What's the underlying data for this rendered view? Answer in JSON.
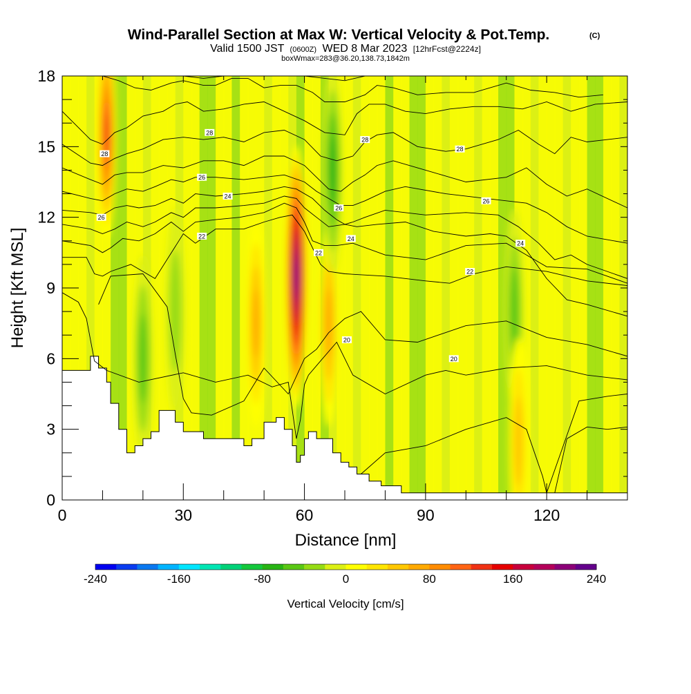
{
  "chart_data": {
    "type": "heatmap",
    "title": {
      "main": "Wind-Parallel Section at Max W: Vertical Velocity & Pot.Temp.",
      "copyright": "(C)",
      "valid_a": "Valid 1500 JST",
      "valid_zulu": "(0600Z)",
      "valid_b": "WED 8 Mar 2023",
      "forecast": "[12hrFcst@2224z]",
      "box_info": "boxWmax=283@36.20,138.73,1842m"
    },
    "xlabel": "Distance [nm]",
    "ylabel": "Height [Kft MSL]",
    "xlim": [
      0,
      140
    ],
    "ylim": [
      0,
      18
    ],
    "x_ticks": [
      0,
      30,
      60,
      90,
      120
    ],
    "y_ticks": [
      0,
      3,
      6,
      9,
      12,
      15,
      18
    ],
    "colorbar": {
      "label": "Vertical Velocity [cm/s]",
      "min": -240,
      "max": 240,
      "step": 20,
      "tick_values": [
        -240,
        -160,
        -80,
        0,
        80,
        160,
        240
      ],
      "colors": [
        "#0000f0",
        "#0a3cf0",
        "#0a78f0",
        "#00b4ff",
        "#00e6ff",
        "#00e6b4",
        "#00d278",
        "#14c83c",
        "#28b414",
        "#5ac814",
        "#96dc14",
        "#dcf014",
        "#ffff00",
        "#ffe600",
        "#ffc800",
        "#ffaa00",
        "#ff8c00",
        "#ff6414",
        "#f03214",
        "#e60000",
        "#c8003c",
        "#b4005a",
        "#8c0078",
        "#64008c"
      ]
    },
    "vertical_velocity_features": [
      {
        "x": 11,
        "y": 15.5,
        "value": 140
      },
      {
        "x": 20,
        "y": 6,
        "value": -60
      },
      {
        "x": 28,
        "y": 8,
        "value": -40
      },
      {
        "x": 48,
        "y": 7.5,
        "value": 80
      },
      {
        "x": 58,
        "y": 9.5,
        "value": 230
      },
      {
        "x": 66,
        "y": 7.5,
        "value": 70
      },
      {
        "x": 67,
        "y": 14,
        "value": -80
      },
      {
        "x": 112,
        "y": 8,
        "value": -60
      },
      {
        "x": 113,
        "y": 2.5,
        "value": 60
      }
    ],
    "terrain": {
      "x": [
        0,
        7,
        9,
        11,
        12,
        14,
        16,
        18,
        20,
        22,
        24,
        26,
        28,
        30,
        35,
        40,
        45,
        47,
        50,
        53,
        55,
        57,
        58,
        59,
        60,
        61,
        63,
        65,
        67,
        69,
        71,
        73,
        76,
        79,
        84,
        100,
        120,
        140
      ],
      "height": [
        5.5,
        6.1,
        5.6,
        5.0,
        4.1,
        3.0,
        2.0,
        2.3,
        2.6,
        2.9,
        3.8,
        3.8,
        3.3,
        2.9,
        2.6,
        2.6,
        2.3,
        2.6,
        3.3,
        3.5,
        3.0,
        2.3,
        1.6,
        1.9,
        2.6,
        2.9,
        2.6,
        2.6,
        2.0,
        1.6,
        1.4,
        1.1,
        0.8,
        0.6,
        0.3,
        0.3,
        0.3,
        0.3
      ]
    },
    "contours": {
      "field": "potential temperature",
      "levels": [
        {
          "value": 18,
          "x": [
            122,
            125,
            130,
            135,
            140
          ],
          "y": [
            0.3,
            2.6,
            3.1,
            3.0,
            3.1
          ]
        },
        {
          "value": 19,
          "x": [
            74,
            80,
            90,
            100,
            110,
            115,
            117,
            119,
            120,
            128,
            135,
            140
          ],
          "y": [
            1.1,
            2.0,
            2.3,
            3.0,
            3.5,
            3.0,
            2.0,
            1.0,
            0.3,
            4.2,
            4.4,
            4.5
          ]
        },
        {
          "value": 20,
          "x": [
            0,
            4,
            6,
            8,
            11,
            19,
            30,
            38,
            46,
            52,
            56,
            58,
            59,
            60,
            61,
            64,
            68,
            72,
            80,
            90,
            95,
            100,
            110,
            120,
            130,
            140
          ],
          "y": [
            8.8,
            8.4,
            7.7,
            5.9,
            5.5,
            5.0,
            5.4,
            5.0,
            5.3,
            4.8,
            5.0,
            2.6,
            3.4,
            4.9,
            5.3,
            5.9,
            6.7,
            5.3,
            4.5,
            5.3,
            5.5,
            5.3,
            5.6,
            5.7,
            5.3,
            5.1
          ]
        },
        {
          "value": 21,
          "x": [
            9,
            12,
            20,
            26,
            28,
            30,
            32,
            37,
            45,
            50,
            56,
            60,
            63,
            66,
            70,
            74,
            80,
            88,
            100,
            110,
            120,
            130,
            140
          ],
          "y": [
            8.3,
            9.5,
            9.6,
            8.2,
            6.2,
            4.3,
            3.7,
            3.6,
            4.2,
            5.6,
            4.5,
            6.0,
            6.4,
            7.1,
            7.7,
            8.0,
            6.8,
            6.7,
            7.4,
            7.6,
            6.9,
            6.6,
            6.1
          ]
        },
        {
          "value": 22,
          "x": [
            0,
            6,
            8,
            10,
            12,
            17,
            23,
            30,
            33,
            38,
            45,
            50,
            54,
            57,
            60,
            62,
            64,
            66,
            70,
            80,
            90,
            96,
            102,
            110,
            120,
            130,
            140
          ],
          "y": [
            10.3,
            10.3,
            9.6,
            9.5,
            9.7,
            10.0,
            9.4,
            11.3,
            10.9,
            11.5,
            11.5,
            11.8,
            12.0,
            12.1,
            11.4,
            10.7,
            10.0,
            9.7,
            9.6,
            9.5,
            9.3,
            9.2,
            9.6,
            9.9,
            9.7,
            9.3,
            9.1
          ]
        },
        {
          "value": 23,
          "x": [
            0,
            7,
            10,
            12,
            15,
            19,
            23,
            27,
            30,
            33,
            38,
            44,
            50,
            55,
            58,
            60,
            62,
            65,
            68,
            72,
            80,
            90,
            100,
            110,
            120,
            130,
            140
          ],
          "y": [
            11.0,
            10.8,
            10.5,
            10.7,
            11.1,
            11.0,
            11.3,
            11.8,
            11.4,
            11.8,
            11.9,
            12.0,
            12.2,
            12.6,
            12.4,
            11.8,
            11.0,
            10.8,
            10.8,
            10.9,
            10.4,
            10.2,
            10.8,
            10.9,
            9.9,
            9.8,
            9.2
          ]
        },
        {
          "value": 24,
          "x": [
            0,
            7,
            10,
            13,
            16,
            20,
            23,
            27,
            30,
            33,
            38,
            45,
            50,
            55,
            58,
            60,
            63,
            66,
            70,
            73,
            78,
            85,
            92,
            100,
            106,
            110,
            115,
            120,
            125,
            130,
            140
          ],
          "y": [
            11.7,
            11.5,
            11.3,
            11.5,
            11.8,
            11.6,
            11.8,
            12.2,
            12.0,
            12.4,
            12.4,
            12.5,
            12.6,
            12.9,
            12.8,
            12.4,
            12.0,
            11.6,
            11.7,
            11.6,
            11.7,
            11.8,
            11.4,
            11.2,
            11.3,
            11.2,
            10.6,
            9.4,
            8.5,
            8.3,
            7.8
          ]
        },
        {
          "value": 25,
          "x": [
            0,
            7,
            10,
            13,
            16,
            19,
            23,
            27,
            30,
            33,
            38,
            45,
            50,
            55,
            58,
            62,
            65,
            68,
            70,
            72,
            75,
            80,
            90,
            100,
            108,
            113,
            118,
            122,
            126,
            130,
            140
          ],
          "y": [
            12.3,
            12.2,
            12.1,
            12.4,
            12.5,
            12.4,
            12.5,
            12.8,
            12.6,
            13.0,
            12.9,
            13.0,
            13.1,
            13.3,
            13.2,
            12.8,
            12.3,
            11.9,
            11.7,
            11.8,
            12.0,
            12.3,
            12.1,
            12.2,
            12.1,
            11.6,
            10.9,
            10.2,
            10.4,
            10.0,
            9.4
          ]
        },
        {
          "value": 26,
          "x": [
            0,
            7,
            10,
            13,
            16,
            20,
            23,
            27,
            30,
            33,
            38,
            45,
            50,
            55,
            60,
            63,
            66,
            69,
            72,
            75,
            80,
            85,
            95,
            105,
            110,
            115,
            120,
            125,
            130,
            140
          ],
          "y": [
            13.1,
            12.8,
            12.7,
            13.0,
            13.2,
            13.1,
            13.3,
            13.6,
            13.5,
            13.7,
            13.7,
            13.6,
            13.7,
            13.8,
            13.5,
            13.1,
            12.8,
            12.5,
            12.5,
            12.7,
            13.1,
            13.3,
            13.0,
            12.8,
            12.7,
            12.6,
            12.2,
            11.6,
            11.2,
            10.9
          ]
        },
        {
          "value": 27,
          "x": [
            0,
            7,
            10,
            13,
            16,
            20,
            25,
            30,
            35,
            40,
            45,
            50,
            55,
            60,
            63,
            66,
            69,
            72,
            75,
            78,
            82,
            90,
            100,
            110,
            115,
            120,
            125,
            130,
            140
          ],
          "y": [
            14.1,
            13.6,
            13.4,
            13.8,
            13.9,
            13.9,
            14.2,
            14.1,
            14.4,
            14.4,
            14.2,
            14.6,
            14.6,
            14.2,
            13.7,
            13.2,
            13.1,
            13.5,
            13.8,
            14.2,
            14.4,
            14.0,
            13.5,
            13.7,
            14.1,
            13.4,
            12.9,
            13.2,
            12.4
          ]
        },
        {
          "value": 28,
          "x": [
            0,
            7,
            10,
            13,
            16,
            20,
            25,
            30,
            35,
            40,
            45,
            50,
            55,
            60,
            64,
            68,
            72,
            75,
            78,
            82,
            88,
            95,
            100,
            108,
            113,
            118,
            122,
            126,
            130,
            140
          ],
          "y": [
            15.1,
            14.3,
            14.2,
            14.5,
            14.7,
            14.9,
            15.3,
            15.4,
            15.3,
            15.4,
            15.2,
            15.6,
            15.7,
            15.3,
            14.6,
            14.4,
            14.6,
            15.2,
            15.5,
            15.6,
            15.0,
            14.8,
            14.9,
            15.3,
            15.7,
            15.1,
            14.7,
            15.4,
            15.2,
            15.4
          ]
        },
        {
          "value": 29,
          "x": [
            0,
            7,
            10,
            13,
            16,
            20,
            25,
            28,
            31,
            35,
            40,
            45,
            50,
            55,
            60,
            65,
            70,
            73,
            76,
            80,
            85,
            90,
            96,
            102,
            108,
            114,
            120,
            126,
            132,
            140
          ],
          "y": [
            16.5,
            15.3,
            15.1,
            15.6,
            15.8,
            16.3,
            16.5,
            16.8,
            16.9,
            16.5,
            16.6,
            16.8,
            16.9,
            16.5,
            16.1,
            15.6,
            15.5,
            16.4,
            16.8,
            16.8,
            16.5,
            16.4,
            16.6,
            16.7,
            16.7,
            16.6,
            16.9,
            16.5,
            16.8,
            16.9
          ]
        },
        {
          "value": 30,
          "x": [
            10,
            14,
            18,
            22,
            27,
            30,
            35,
            38,
            42,
            46,
            50,
            54,
            58,
            62,
            65,
            70,
            75,
            78,
            82,
            88,
            95,
            102,
            110,
            116,
            122,
            128,
            134
          ],
          "y": [
            18.0,
            17.8,
            17.5,
            17.4,
            17.7,
            17.8,
            17.6,
            17.6,
            17.9,
            17.9,
            17.5,
            17.6,
            17.6,
            17.3,
            16.9,
            16.9,
            17.2,
            17.6,
            17.5,
            17.2,
            17.3,
            17.3,
            17.7,
            17.4,
            17.3,
            17.1,
            17.2
          ]
        },
        {
          "value": 31,
          "x": [
            30,
            35,
            40,
            45,
            50,
            55,
            60,
            65,
            70,
            75
          ],
          "y": [
            18.0,
            17.9,
            18.0,
            18.0,
            18.0,
            18.0,
            18.0,
            17.9,
            17.8,
            18.0
          ]
        },
        {
          "value": 32,
          "x": [
            28,
            33,
            38,
            43,
            48,
            53,
            58
          ],
          "y": [
            18.0,
            18.0,
            18.0,
            18.0,
            18.0,
            18.0,
            18.0
          ]
        }
      ],
      "labels": [
        {
          "text": "28",
          "x": 10.5,
          "y": 14.7
        },
        {
          "text": "26",
          "x": 9.7,
          "y": 12.0
        },
        {
          "text": "28",
          "x": 36.5,
          "y": 15.6
        },
        {
          "text": "26",
          "x": 34.6,
          "y": 13.7
        },
        {
          "text": "24",
          "x": 41.0,
          "y": 12.9
        },
        {
          "text": "22",
          "x": 34.6,
          "y": 11.2
        },
        {
          "text": "28",
          "x": 75.0,
          "y": 15.3
        },
        {
          "text": "28",
          "x": 98.5,
          "y": 14.9
        },
        {
          "text": "26",
          "x": 105.0,
          "y": 12.7
        },
        {
          "text": "24",
          "x": 113.5,
          "y": 10.9
        },
        {
          "text": "22",
          "x": 101.0,
          "y": 9.7
        },
        {
          "text": "26",
          "x": 68.5,
          "y": 12.4
        },
        {
          "text": "24",
          "x": 71.5,
          "y": 11.1
        },
        {
          "text": "22",
          "x": 63.5,
          "y": 10.5
        },
        {
          "text": "20",
          "x": 70.5,
          "y": 6.8
        },
        {
          "text": "20",
          "x": 97.0,
          "y": 6.0
        }
      ]
    }
  }
}
